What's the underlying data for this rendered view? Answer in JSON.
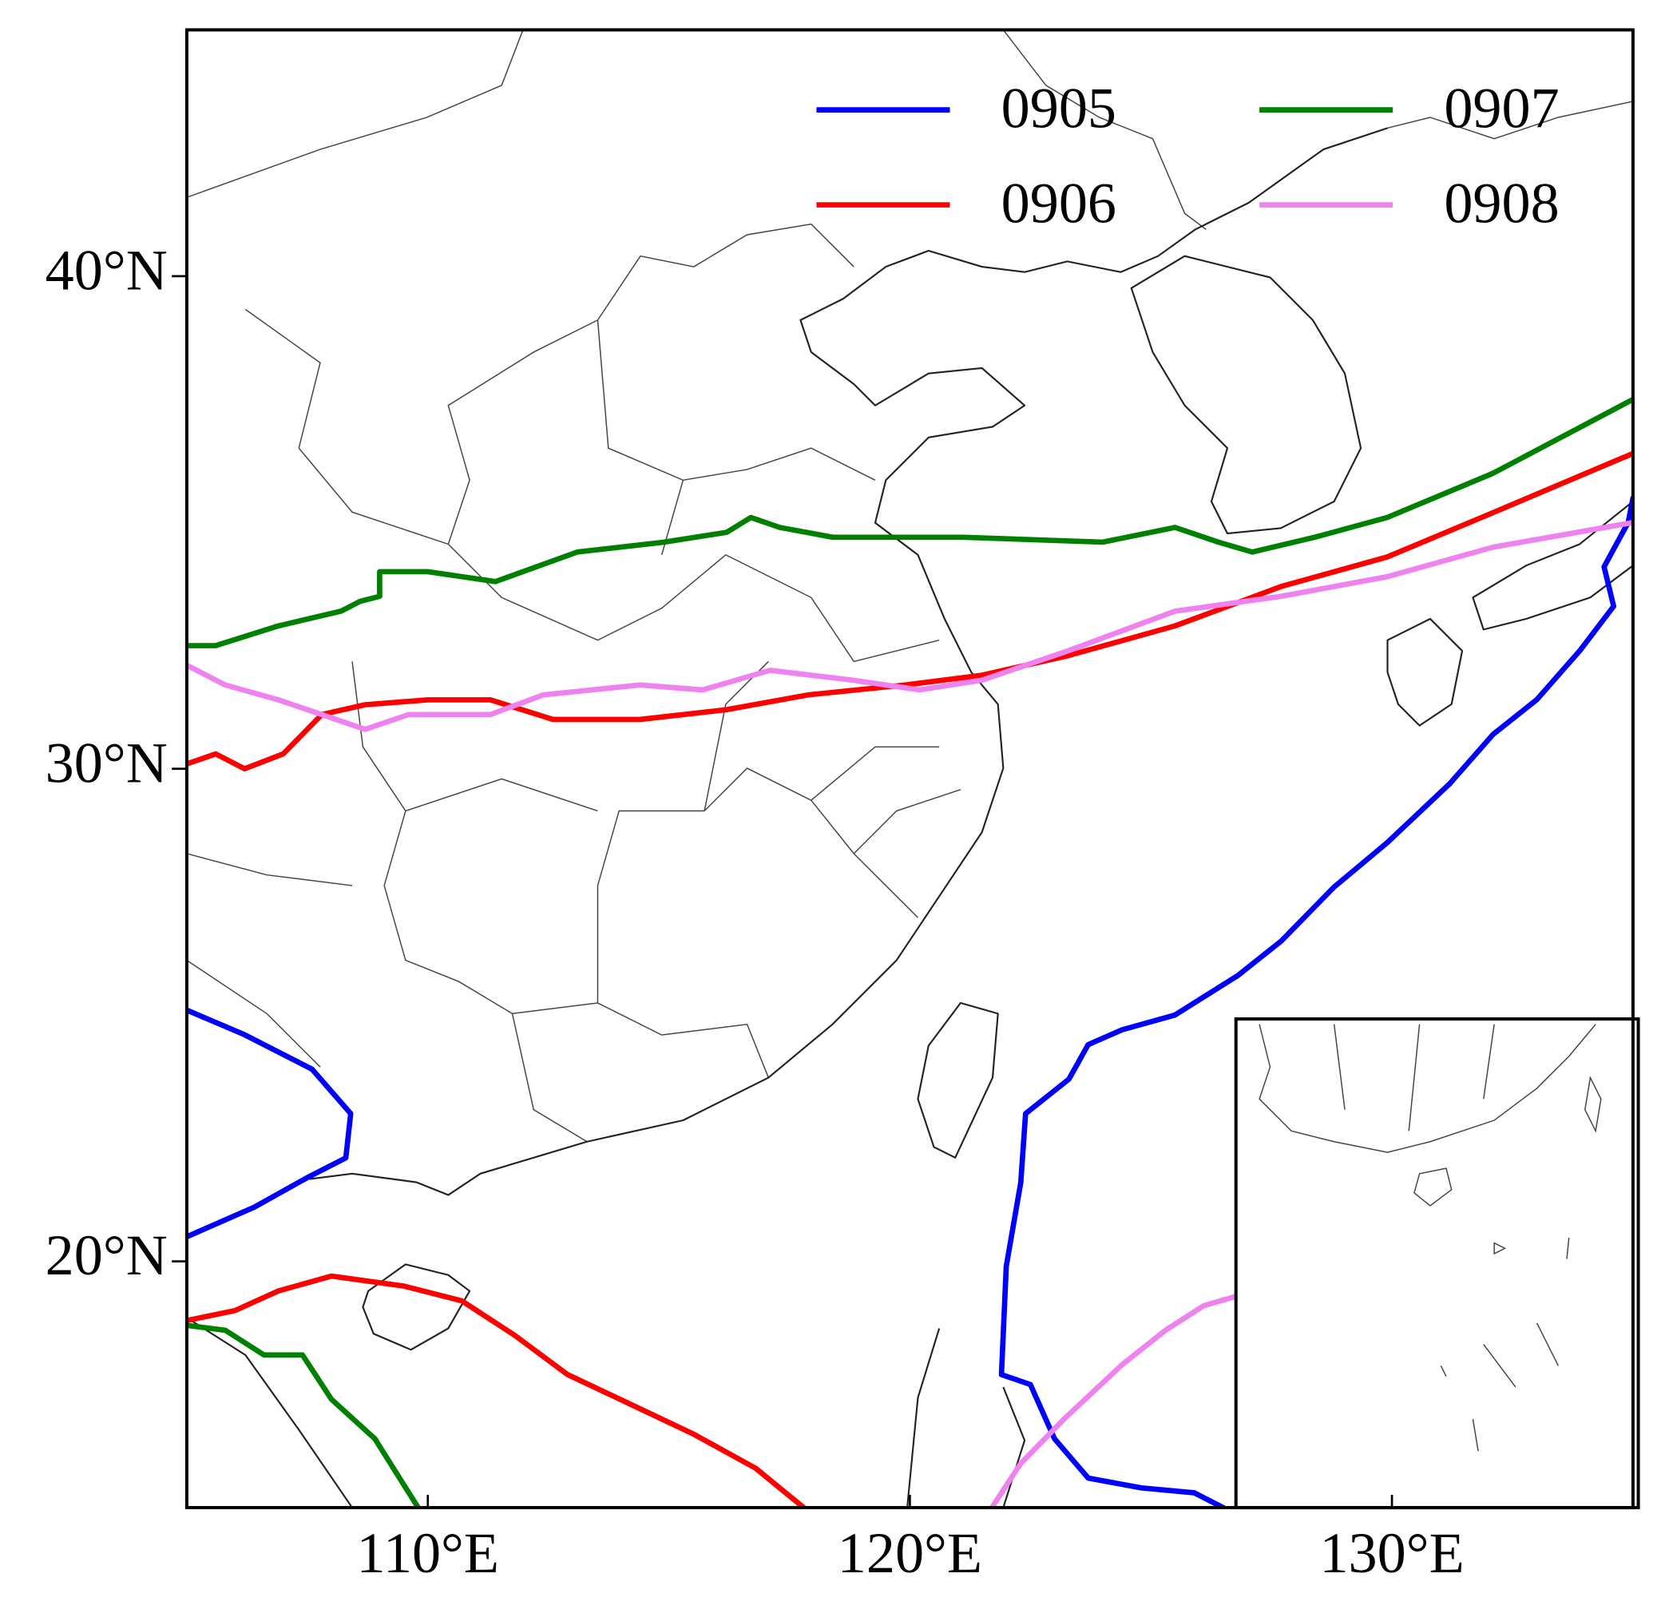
{
  "chart_data": {
    "type": "line",
    "xlim": [
      105,
      135
    ],
    "ylim": [
      15,
      45
    ],
    "xticks": [
      {
        "value": 110,
        "label": "110°E"
      },
      {
        "value": 120,
        "label": "120°E"
      },
      {
        "value": 130,
        "label": "130°E"
      }
    ],
    "yticks": [
      {
        "value": 20,
        "label": "20°N"
      },
      {
        "value": 30,
        "label": "30°N"
      },
      {
        "value": 40,
        "label": "40°N"
      }
    ],
    "grid": false,
    "series": [
      {
        "name": "0905",
        "color": "#0000ff",
        "x": [
          105,
          106.2,
          107.6,
          108.4,
          108.3,
          107.5,
          106.4,
          105,
          null,
          135.0,
          134.9,
          134.4,
          134.6,
          133.9,
          133.0,
          132.1,
          131.2,
          129.9,
          128.8,
          127.7,
          126.8,
          125.5,
          124.4,
          123.7,
          123.3,
          122.4,
          122.3,
          122.0,
          121.9,
          122.5,
          123.0,
          123.7,
          124.8,
          125.9,
          126.5
        ],
        "values": [
          25.1,
          24.6,
          23.9,
          23.0,
          22.1,
          21.7,
          21.1,
          20.5,
          null,
          35.5,
          35.0,
          34.1,
          33.3,
          32.4,
          31.4,
          30.7,
          29.7,
          28.5,
          27.6,
          26.5,
          25.8,
          25.0,
          24.7,
          24.4,
          23.7,
          23.0,
          21.6,
          19.9,
          17.7,
          17.5,
          16.4,
          15.6,
          15.4,
          15.3,
          15.0
        ]
      },
      {
        "name": "0906",
        "color": "#ff0000",
        "x": [
          105,
          105.6,
          106.2,
          107.0,
          107.8,
          108.7,
          110.0,
          111.3,
          112.6,
          114.4,
          116.2,
          117.9,
          119.9,
          121.5,
          123.3,
          125.5,
          127.7,
          129.9,
          132.1,
          135,
          null,
          105,
          106.0,
          106.9,
          108.0,
          109.5,
          110.7,
          111.8,
          112.9,
          114.2,
          115.5,
          116.8,
          117.8
        ],
        "values": [
          30.1,
          30.3,
          30.0,
          30.3,
          31.1,
          31.3,
          31.4,
          31.4,
          31.0,
          31.0,
          31.2,
          31.5,
          31.7,
          31.9,
          32.3,
          32.9,
          33.7,
          34.3,
          35.2,
          36.4,
          null,
          18.8,
          19.0,
          19.4,
          19.7,
          19.5,
          19.2,
          18.5,
          17.7,
          17.1,
          16.5,
          15.8,
          15.0
        ]
      },
      {
        "name": "0907",
        "color": "#008000",
        "x": [
          105,
          105.6,
          106.9,
          108.2,
          108.6,
          109.0,
          109.0,
          110.0,
          111.4,
          113.1,
          114.9,
          116.2,
          116.7,
          117.3,
          118.4,
          121.1,
          124.0,
          125.5,
          126.4,
          127.1,
          128.4,
          129.9,
          132.1,
          135.0,
          null,
          105,
          105.8,
          106.6,
          107.4,
          108.0,
          108.9,
          109.8
        ],
        "values": [
          32.5,
          32.5,
          32.9,
          33.2,
          33.4,
          33.5,
          34.0,
          34.0,
          33.8,
          34.4,
          34.6,
          34.8,
          35.1,
          34.9,
          34.7,
          34.7,
          34.6,
          34.9,
          34.6,
          34.4,
          34.7,
          35.1,
          36.0,
          37.5,
          null,
          18.7,
          18.6,
          18.1,
          18.1,
          17.2,
          16.4,
          15.0
        ]
      },
      {
        "name": "0908",
        "color": "#ee82ee",
        "x": [
          105,
          105.8,
          106.9,
          107.8,
          108.7,
          109.6,
          111.3,
          112.4,
          114.4,
          115.7,
          117.1,
          118.8,
          120.2,
          121.5,
          123.3,
          125.5,
          127.7,
          129.9,
          132.1,
          135.0,
          null,
          121.7,
          122.3,
          123.2,
          124.4,
          125.3,
          126.1,
          126.8
        ],
        "values": [
          32.1,
          31.7,
          31.4,
          31.1,
          30.8,
          31.1,
          31.1,
          31.5,
          31.7,
          31.6,
          32.0,
          31.8,
          31.6,
          31.8,
          32.4,
          33.2,
          33.5,
          33.9,
          34.5,
          35.0,
          null,
          15.0,
          15.9,
          16.8,
          17.9,
          18.6,
          19.1,
          19.3
        ]
      }
    ]
  }
}
